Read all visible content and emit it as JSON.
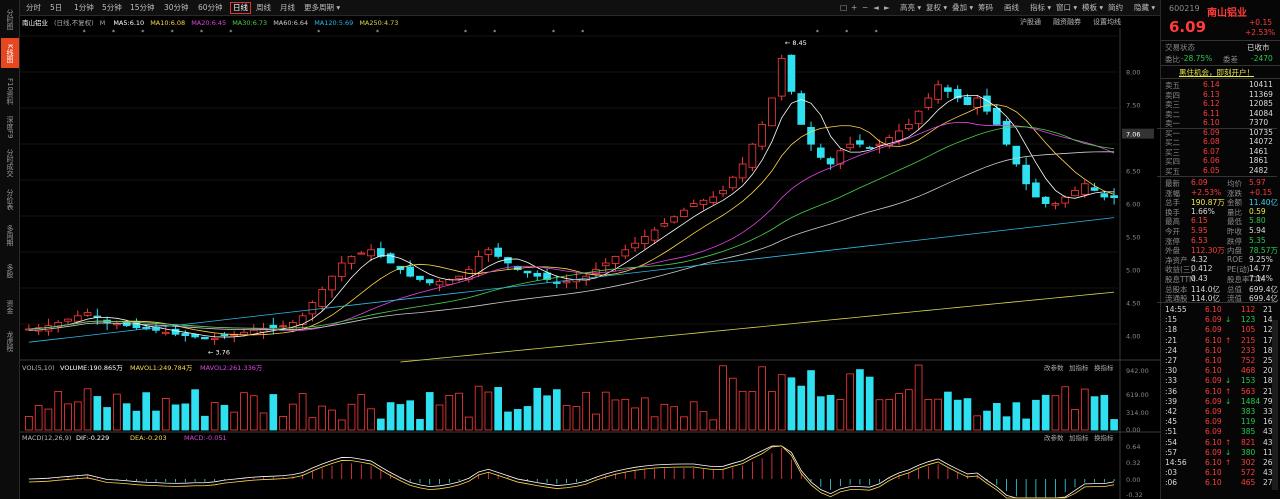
{
  "left_nav": [
    {
      "label": "分时图",
      "active": false
    },
    {
      "label": "K线图",
      "active": true
    },
    {
      "label": "F10资料",
      "active": false
    },
    {
      "label": "深度F9",
      "active": false
    },
    {
      "label": "分时成交",
      "active": false
    },
    {
      "label": "分价表",
      "active": false
    },
    {
      "label": "多周期",
      "active": false
    },
    {
      "label": "多股",
      "active": false
    },
    {
      "label": "资金",
      "active": false
    },
    {
      "label": "龙虎榜",
      "active": false
    }
  ],
  "toolbar": {
    "periods": [
      "分时",
      "5日",
      "1分钟",
      "5分钟",
      "15分钟",
      "30分钟",
      "60分钟",
      "日线",
      "周线",
      "月线",
      "更多周期 ▾"
    ],
    "active_period": "日线",
    "right_items": [
      "高亮 ▾",
      "复权 ▾",
      "叠加 ▾",
      "筹码",
      "画线",
      "指标 ▾",
      "窗口 ▾",
      "模板 ▾",
      "简约",
      "隐藏 ▾"
    ]
  },
  "ma_line": {
    "name": "南山铝业",
    "mode": "(日线,不复权)",
    "items": [
      {
        "text": "MA5:6.10",
        "color": "#ffffff"
      },
      {
        "text": "MA10:6.08",
        "color": "#ffd84a"
      },
      {
        "text": "MA20:6.45",
        "color": "#e044e0"
      },
      {
        "text": "MA30:6.73",
        "color": "#4ad04a"
      },
      {
        "text": "MA60:6.64",
        "color": "#cccccc"
      },
      {
        "text": "MA120:5.69",
        "color": "#2fb8e8"
      },
      {
        "text": "MA250:4.73",
        "color": "#d8d84a"
      }
    ],
    "right": [
      "沪股通",
      "融资融券",
      "设置均线"
    ]
  },
  "price_axis": [
    "8.00",
    "7.50",
    "7.06",
    "6.50",
    "6.00",
    "5.50",
    "5.00",
    "4.50",
    "4.00"
  ],
  "high_label": "← 8.45",
  "low_label": "← 3.76",
  "volume": {
    "title": "VOL(5,10)",
    "items": [
      {
        "text": "VOLUME:190.865万",
        "color": "#ffffff"
      },
      {
        "text": "MAVOL1:249.784万",
        "color": "#ffd84a"
      },
      {
        "text": "MAVOL2:261.336万",
        "color": "#e044e0"
      }
    ],
    "axis": [
      "942.00",
      "619.00",
      "314.00",
      "0.00"
    ],
    "buttons": [
      "改参数",
      "加指标",
      "换指标"
    ]
  },
  "macd": {
    "title": "MACD(12,26,9)",
    "items": [
      {
        "text": "DIF:-0.229",
        "color": "#ffffff"
      },
      {
        "text": "DEA:-0.203",
        "color": "#ffd84a"
      },
      {
        "text": "MACD:-0.051",
        "color": "#e044e0"
      }
    ],
    "axis": [
      "0.64",
      "0.32",
      "0.00",
      "-0.32"
    ],
    "buttons": [
      "改参数",
      "加指标",
      "换指标"
    ]
  },
  "panel": {
    "code": "600219",
    "name": "南山铝业",
    "price": "6.09",
    "change": "+0.15",
    "pct": "+2.53%",
    "status_label": "交易状态",
    "status": "已收市",
    "weibi_label": "委比",
    "weibi": "-28.75%",
    "weicha_label": "委差",
    "weicha": "-2470",
    "notice": "黑住机会，即刻开户！",
    "asks": [
      {
        "l": "卖五",
        "p": "6.14",
        "v": "10411"
      },
      {
        "l": "卖四",
        "p": "6.13",
        "v": "11369"
      },
      {
        "l": "卖三",
        "p": "6.12",
        "v": "12085"
      },
      {
        "l": "卖二",
        "p": "6.11",
        "v": "14084"
      },
      {
        "l": "卖一",
        "p": "6.10",
        "v": "7370"
      }
    ],
    "bids": [
      {
        "l": "买一",
        "p": "6.09",
        "v": "10735"
      },
      {
        "l": "买二",
        "p": "6.08",
        "v": "14072"
      },
      {
        "l": "买三",
        "p": "6.07",
        "v": "1461"
      },
      {
        "l": "买四",
        "p": "6.06",
        "v": "1861"
      },
      {
        "l": "买五",
        "p": "6.05",
        "v": "2482"
      }
    ],
    "stats": [
      [
        {
          "t": "最新",
          "c": "gry"
        },
        {
          "t": "6.09",
          "c": "red"
        },
        {
          "t": "均价",
          "c": "gry"
        },
        {
          "t": "5.97",
          "c": "red"
        }
      ],
      [
        {
          "t": "涨幅",
          "c": "gry"
        },
        {
          "t": "+2.53%",
          "c": "red"
        },
        {
          "t": "涨跌",
          "c": "gry"
        },
        {
          "t": "+0.15",
          "c": "red"
        }
      ],
      [
        {
          "t": "总手",
          "c": "gry"
        },
        {
          "t": "190.87万",
          "c": "yel"
        },
        {
          "t": "金额",
          "c": "gry"
        },
        {
          "t": "11.40亿",
          "c": "cy"
        }
      ],
      [
        {
          "t": "换手",
          "c": "gry"
        },
        {
          "t": "1.66%",
          "c": "wht"
        },
        {
          "t": "量比",
          "c": "gry"
        },
        {
          "t": "0.59",
          "c": "yel"
        }
      ],
      [
        {
          "t": "最高",
          "c": "gry"
        },
        {
          "t": "6.15",
          "c": "red"
        },
        {
          "t": "最低",
          "c": "gry"
        },
        {
          "t": "5.80",
          "c": "grn"
        }
      ],
      [
        {
          "t": "今开",
          "c": "gry"
        },
        {
          "t": "5.95",
          "c": "red"
        },
        {
          "t": "昨收",
          "c": "gry"
        },
        {
          "t": "5.94",
          "c": "wht"
        }
      ],
      [
        {
          "t": "涨停",
          "c": "gry"
        },
        {
          "t": "6.53",
          "c": "red"
        },
        {
          "t": "跌停",
          "c": "gry"
        },
        {
          "t": "5.35",
          "c": "grn"
        }
      ],
      [
        {
          "t": "外盘",
          "c": "gry"
        },
        {
          "t": "112.30万",
          "c": "red"
        },
        {
          "t": "内盘",
          "c": "gry"
        },
        {
          "t": "78.57万",
          "c": "grn"
        }
      ],
      [
        {
          "t": "净资产",
          "c": "gry"
        },
        {
          "t": "4.32",
          "c": "wht"
        },
        {
          "t": "ROE",
          "c": "gry"
        },
        {
          "t": "9.25%",
          "c": "wht"
        }
      ],
      [
        {
          "t": "收益(三)",
          "c": "gry"
        },
        {
          "t": "0.412",
          "c": "wht"
        },
        {
          "t": "PE(动)",
          "c": "gry"
        },
        {
          "t": "14.77",
          "c": "wht"
        }
      ],
      [
        {
          "t": "股息TTM",
          "c": "gry"
        },
        {
          "t": "0.43",
          "c": "wht"
        },
        {
          "t": "股息率TTM",
          "c": "gry"
        },
        {
          "t": "7.14%",
          "c": "wht"
        }
      ],
      [
        {
          "t": "总股本",
          "c": "gry"
        },
        {
          "t": "114.0亿",
          "c": "wht"
        },
        {
          "t": "总值",
          "c": "gry"
        },
        {
          "t": "699.4亿",
          "c": "wht"
        }
      ],
      [
        {
          "t": "流通股",
          "c": "gry"
        },
        {
          "t": "114.0亿",
          "c": "wht"
        },
        {
          "t": "流值",
          "c": "gry"
        },
        {
          "t": "699.4亿",
          "c": "wht"
        }
      ]
    ],
    "ticks": [
      {
        "t": "14:55",
        "p": "6.10",
        "pc": "red",
        "a": "",
        "v": "112",
        "vc": "red",
        "n": "21"
      },
      {
        "t": ":15",
        "p": "6.09",
        "pc": "red",
        "a": "↓",
        "v": "123",
        "vc": "grn",
        "n": "14"
      },
      {
        "t": ":18",
        "p": "6.09",
        "pc": "red",
        "a": "",
        "v": "105",
        "vc": "red",
        "n": "12"
      },
      {
        "t": ":21",
        "p": "6.10",
        "pc": "red",
        "a": "↑",
        "v": "215",
        "vc": "red",
        "n": "17"
      },
      {
        "t": ":24",
        "p": "6.10",
        "pc": "red",
        "a": "",
        "v": "233",
        "vc": "red",
        "n": "18"
      },
      {
        "t": ":27",
        "p": "6.10",
        "pc": "red",
        "a": "",
        "v": "752",
        "vc": "red",
        "n": "25"
      },
      {
        "t": ":30",
        "p": "6.10",
        "pc": "red",
        "a": "",
        "v": "468",
        "vc": "red",
        "n": "20"
      },
      {
        "t": ":33",
        "p": "6.09",
        "pc": "red",
        "a": "↓",
        "v": "153",
        "vc": "grn",
        "n": "18"
      },
      {
        "t": ":36",
        "p": "6.10",
        "pc": "red",
        "a": "↑",
        "v": "563",
        "vc": "red",
        "n": "21"
      },
      {
        "t": ":39",
        "p": "6.09",
        "pc": "red",
        "a": "↓",
        "v": "1484",
        "vc": "grn",
        "n": "79"
      },
      {
        "t": ":42",
        "p": "6.09",
        "pc": "red",
        "a": "",
        "v": "383",
        "vc": "grn",
        "n": "33"
      },
      {
        "t": ":45",
        "p": "6.09",
        "pc": "red",
        "a": "",
        "v": "119",
        "vc": "grn",
        "n": "16"
      },
      {
        "t": ":51",
        "p": "6.09",
        "pc": "red",
        "a": "",
        "v": "385",
        "vc": "grn",
        "n": "43"
      },
      {
        "t": ":54",
        "p": "6.10",
        "pc": "red",
        "a": "↑",
        "v": "821",
        "vc": "red",
        "n": "43"
      },
      {
        "t": ":57",
        "p": "6.09",
        "pc": "red",
        "a": "↓",
        "v": "380",
        "vc": "grn",
        "n": "11"
      },
      {
        "t": "14:56",
        "p": "6.10",
        "pc": "red",
        "a": "↑",
        "v": "302",
        "vc": "red",
        "n": "26"
      },
      {
        "t": ":03",
        "p": "6.10",
        "pc": "red",
        "a": "",
        "v": "572",
        "vc": "red",
        "n": "43"
      },
      {
        "t": ":06",
        "p": "6.10",
        "pc": "red",
        "a": "",
        "v": "465",
        "vc": "red",
        "n": "27"
      }
    ]
  },
  "chart_data": {
    "type": "candlestick",
    "title": "南山铝业",
    "yrange": [
      3.6,
      8.6
    ],
    "ma_periods": [
      5,
      10,
      20,
      30,
      60,
      120,
      250
    ],
    "candles_close_trend": [
      4.1,
      4.12,
      4.15,
      4.2,
      4.25,
      4.3,
      4.35,
      4.28,
      4.2,
      4.18,
      4.15,
      4.12,
      4.1,
      4.08,
      4.05,
      4.02,
      4.0,
      3.98,
      3.95,
      3.96,
      4.0,
      4.02,
      4.05,
      4.08,
      4.1,
      4.12,
      4.15,
      4.2,
      4.3,
      4.5,
      4.7,
      4.9,
      5.1,
      5.2,
      5.25,
      5.3,
      5.2,
      5.1,
      5.0,
      4.9,
      4.85,
      4.8,
      4.82,
      4.85,
      4.9,
      5.0,
      5.2,
      5.3,
      5.2,
      5.1,
      5.0,
      4.95,
      4.9,
      4.85,
      4.8,
      4.82,
      4.85,
      4.9,
      5.0,
      5.1,
      5.2,
      5.3,
      5.4,
      5.5,
      5.6,
      5.7,
      5.8,
      5.9,
      6.0,
      6.05,
      6.1,
      6.2,
      6.4,
      6.6,
      6.9,
      7.2,
      7.6,
      8.2,
      7.7,
      7.2,
      6.9,
      6.7,
      6.6,
      6.8,
      6.9,
      6.9,
      6.85,
      6.9,
      7.0,
      7.1,
      7.2,
      7.4,
      7.6,
      7.8,
      7.7,
      7.6,
      7.5,
      7.6,
      7.4,
      7.2,
      6.9,
      6.6,
      6.3,
      6.1,
      6.0,
      6.0,
      6.1,
      6.2,
      6.3,
      6.2,
      6.1,
      6.09
    ]
  }
}
